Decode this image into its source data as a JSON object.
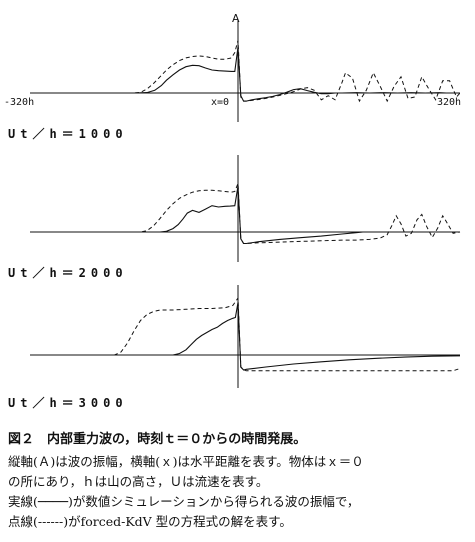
{
  "chart_data": [
    {
      "type": "line",
      "axis_symbol": "A",
      "xlabel": "x",
      "xlim": [
        -320,
        320
      ],
      "x_ticks": [
        "-320h",
        "x=0",
        "320h"
      ],
      "panel_label": "Ut／h＝1000",
      "series": [
        {
          "style": "solid",
          "x": [
            -320,
            -160,
            -140,
            -128,
            -118,
            -110,
            -100,
            -90,
            -80,
            -70,
            -60,
            -50,
            -40,
            -30,
            -20,
            -10,
            -5,
            0,
            4,
            8,
            12,
            20,
            30,
            40,
            50,
            60,
            70,
            80,
            90,
            100,
            110,
            120,
            130,
            140,
            150,
            170,
            190,
            210,
            230,
            250,
            270,
            290,
            300,
            320
          ],
          "y": [
            0,
            0,
            0.03,
            0.2,
            0.55,
            0.95,
            1.35,
            1.7,
            1.95,
            2.05,
            2.02,
            1.85,
            1.7,
            1.65,
            1.62,
            1.6,
            1.6,
            3.4,
            -0.2,
            -0.6,
            -0.6,
            -0.5,
            -0.42,
            -0.35,
            -0.25,
            -0.12,
            0.05,
            0.25,
            0.32,
            0.18,
            0.05,
            -0.05,
            -0.05,
            0,
            0,
            0.02,
            0,
            0.02,
            0,
            0.02,
            0,
            0.02,
            0,
            0
          ]
        },
        {
          "style": "dashed",
          "x": [
            -320,
            -160,
            -150,
            -140,
            -130,
            -120,
            -110,
            -100,
            -90,
            -80,
            -70,
            -60,
            -50,
            -40,
            -30,
            -20,
            -10,
            -5,
            0,
            4,
            8,
            12,
            20,
            30,
            40,
            50,
            60,
            70,
            80,
            90,
            100,
            110,
            120,
            130,
            140,
            150,
            155,
            165,
            175,
            185,
            195,
            205,
            215,
            225,
            235,
            245,
            255,
            265,
            275,
            285,
            295,
            305,
            315,
            320
          ],
          "y": [
            0,
            0,
            0.05,
            0.3,
            0.7,
            1.2,
            1.7,
            2.1,
            2.4,
            2.6,
            2.7,
            2.75,
            2.7,
            2.6,
            2.5,
            2.5,
            2.6,
            3.0,
            3.9,
            -0.3,
            -0.6,
            -0.6,
            -0.55,
            -0.48,
            -0.4,
            -0.3,
            -0.18,
            -0.05,
            0.1,
            0.3,
            0.4,
            0.2,
            -0.5,
            -0.2,
            -0.5,
            0.8,
            1.5,
            1.1,
            -0.6,
            0.2,
            1.5,
            0.5,
            -0.6,
            0.5,
            1.2,
            -0.4,
            -0.3,
            1.2,
            0.3,
            -0.5,
            0.9,
            0.9,
            -0.3,
            0
          ]
        }
      ]
    },
    {
      "type": "line",
      "panel_label": "Ut／h＝2000",
      "xlim": [
        -320,
        320
      ],
      "series": [
        {
          "style": "solid",
          "x": [
            -320,
            -120,
            -110,
            -100,
            -92,
            -85,
            -78,
            -70,
            -60,
            -50,
            -40,
            -30,
            -20,
            -12,
            -5,
            0,
            4,
            8,
            12,
            30,
            60,
            90,
            120,
            150,
            170,
            180,
            190,
            200,
            220,
            240,
            260,
            280,
            300,
            320
          ],
          "y": [
            0,
            0,
            0.05,
            0.25,
            0.55,
            0.95,
            1.4,
            1.6,
            1.45,
            1.7,
            1.95,
            1.85,
            1.9,
            1.92,
            1.95,
            3.4,
            -0.5,
            -0.85,
            -0.85,
            -0.72,
            -0.55,
            -0.42,
            -0.3,
            -0.15,
            -0.05,
            0,
            0,
            0,
            0,
            0,
            0,
            0,
            0,
            0
          ]
        },
        {
          "style": "dashed",
          "x": [
            -320,
            -150,
            -140,
            -130,
            -120,
            -110,
            -100,
            -90,
            -80,
            -70,
            -60,
            -50,
            -40,
            -30,
            -20,
            -10,
            -5,
            0,
            4,
            8,
            12,
            30,
            60,
            90,
            120,
            150,
            170,
            190,
            205,
            215,
            222,
            228,
            235,
            242,
            250,
            258,
            265,
            272,
            280,
            288,
            295,
            300,
            310,
            320
          ],
          "y": [
            0,
            0,
            0.1,
            0.45,
            1.0,
            1.6,
            2.1,
            2.5,
            2.75,
            2.95,
            3.05,
            3.1,
            3.1,
            3.05,
            3.0,
            2.95,
            3.0,
            3.6,
            -0.5,
            -0.85,
            -0.85,
            -0.8,
            -0.75,
            -0.7,
            -0.65,
            -0.6,
            -0.6,
            -0.55,
            -0.45,
            -0.2,
            0.5,
            1.2,
            0.6,
            -0.3,
            -0.1,
            0.9,
            1.3,
            0.4,
            -0.4,
            0.3,
            1.2,
            0.8,
            -0.1,
            0
          ]
        }
      ]
    },
    {
      "type": "line",
      "panel_label": "Ut／h＝3000",
      "xlim": [
        -320,
        320
      ],
      "series": [
        {
          "style": "solid",
          "x": [
            -320,
            -100,
            -90,
            -80,
            -72,
            -64,
            -56,
            -48,
            -40,
            -32,
            -24,
            -16,
            -8,
            -4,
            0,
            4,
            8,
            12,
            40,
            80,
            120,
            160,
            200,
            240,
            280,
            320
          ],
          "y": [
            0,
            0,
            0.1,
            0.35,
            0.7,
            1.05,
            1.3,
            1.5,
            1.7,
            1.85,
            2.1,
            2.3,
            2.45,
            2.5,
            3.5,
            -0.8,
            -1.0,
            -0.95,
            -0.8,
            -0.6,
            -0.45,
            -0.32,
            -0.22,
            -0.14,
            -0.08,
            -0.05
          ]
        },
        {
          "style": "dashed",
          "x": [
            -320,
            -190,
            -180,
            -170,
            -160,
            -150,
            -140,
            -130,
            -120,
            -100,
            -80,
            -60,
            -40,
            -20,
            -8,
            0,
            4,
            8,
            12,
            40,
            100,
            160,
            220,
            280,
            310,
            320
          ],
          "y": [
            0,
            0,
            0.2,
            0.8,
            1.6,
            2.3,
            2.7,
            2.9,
            3.0,
            3.0,
            3.05,
            3.1,
            3.1,
            3.15,
            3.3,
            3.8,
            -0.8,
            -1.0,
            -1.05,
            -1.05,
            -1.05,
            -1.05,
            -1.05,
            -1.05,
            -1.05,
            -0.9
          ]
        }
      ]
    }
  ],
  "caption": {
    "title": "図２　内部重力波の，時刻ｔ＝０からの時間発展。",
    "lines": [
      "縦軸(Ａ)は波の振幅，横軸(ｘ)は水平距離を表す。物体はｘ＝０",
      "の所にあり，ｈは山の高さ，Ｕは流速を表す。",
      "実線(────)が数値シミュレーションから得られる波の振幅で，",
      "点線(------)がforced-KdV 型の方程式の解を表す。"
    ]
  }
}
